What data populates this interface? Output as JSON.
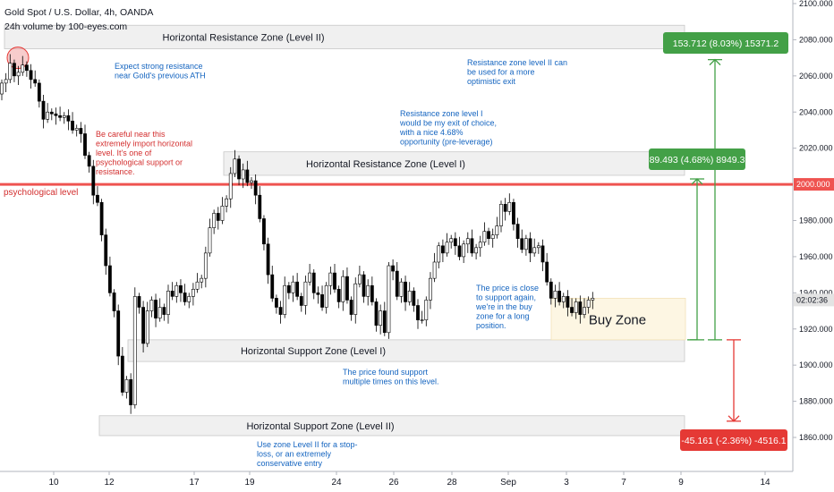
{
  "header": {
    "title": "Gold Spot / U.S. Dollar, 4h, OANDA",
    "subtitle": "24h volume by 100-eyes.com"
  },
  "chart_data": {
    "type": "candlestick",
    "ylim": [
      1850,
      2100
    ],
    "yticks": [
      {
        "value": 2100,
        "label": "2100.000"
      },
      {
        "value": 2080,
        "label": "2080.000"
      },
      {
        "value": 2060,
        "label": "2060.000"
      },
      {
        "value": 2040,
        "label": "2040.000"
      },
      {
        "value": 2020,
        "label": "2020.000"
      },
      {
        "value": 1980,
        "label": "1980.000"
      },
      {
        "value": 1960,
        "label": "1960.000"
      },
      {
        "value": 1940,
        "label": "1940.000"
      },
      {
        "value": 1920,
        "label": "1920.000"
      },
      {
        "value": 1900,
        "label": "1900.000"
      },
      {
        "value": 1880,
        "label": "1880.000"
      },
      {
        "value": 1860,
        "label": "1860.000"
      }
    ],
    "xticks": [
      "10",
      "12",
      "17",
      "19",
      "24",
      "26",
      "28",
      "Sep",
      "3",
      "7",
      "9",
      "14"
    ],
    "psych_level": {
      "value": 2000,
      "label": "2000.000",
      "text": "psychological level"
    },
    "current_price": {
      "value": 1937,
      "label": "02:02:36"
    },
    "candles_close": [
      2056,
      2058,
      2067,
      2060,
      2062,
      2066,
      2063,
      2058,
      2056,
      2046,
      2036,
      2040,
      2039,
      2038,
      2037,
      2038,
      2035,
      2030,
      2031,
      2028,
      2016,
      2010,
      1994,
      1990,
      1972,
      1955,
      1940,
      1930,
      1905,
      1885,
      1892,
      1878,
      1938,
      1932,
      1912,
      1930,
      1936,
      1926,
      1932,
      1928,
      1941,
      1938,
      1944,
      1940,
      1935,
      1938,
      1942,
      1946,
      1948,
      1962,
      1976,
      1984,
      1980,
      1988,
      1992,
      2006,
      2014,
      2003,
      2008,
      2001,
      2002,
      1994,
      1981,
      1967,
      1950,
      1937,
      1932,
      1928,
      1944,
      1940,
      1946,
      1938,
      1933,
      1946,
      1951,
      1940,
      1939,
      1932,
      1944,
      1951,
      1942,
      1935,
      1949,
      1936,
      1928,
      1945,
      1950,
      1938,
      1944,
      1935,
      1922,
      1930,
      1918,
      1955,
      1952,
      1938,
      1946,
      1935,
      1941,
      1933,
      1925,
      1925,
      1936,
      1948,
      1957,
      1966,
      1962,
      1968,
      1970,
      1966,
      1960,
      1967,
      1970,
      1962,
      1965,
      1968,
      1974,
      1970,
      1972,
      1977,
      1989,
      1985,
      1990,
      1978,
      1970,
      1964,
      1970,
      1962,
      1965,
      1966,
      1957,
      1946,
      1937,
      1941,
      1935,
      1938,
      1932,
      1929,
      1935,
      1928,
      1932,
      1936,
      1937
    ],
    "annotations": [
      {
        "text": "Horizontal Resistance Zone (Level II)",
        "low": 2075,
        "high": 2088
      },
      {
        "text": "Horizontal Resistance Zone (Level I)",
        "low": 2005,
        "high": 2018
      },
      {
        "text": "Horizontal Support Zone (Level I)",
        "low": 1902,
        "high": 1914
      },
      {
        "text": "Horizontal Support Zone (Level II)",
        "low": 1861,
        "high": 1872
      },
      {
        "text": "Buy Zone",
        "low": 1914,
        "high": 1937
      }
    ],
    "notes": [
      {
        "lines": [
          "Expect strong resistance",
          "near Gold's previous ATH"
        ],
        "color": "#1565c0"
      },
      {
        "lines": [
          "Resistance zone level II can",
          "be used for a more",
          "optimistic exit"
        ],
        "color": "#1565c0"
      },
      {
        "lines": [
          "Resistance zone level I",
          "would be my exit of choice,",
          "with a nice 4.68%",
          "opportunity (pre-leverage)"
        ],
        "color": "#1565c0"
      },
      {
        "lines": [
          "Be careful near this",
          "extremely import horizontal",
          "level. It's one of",
          "psychological support or",
          "resistance."
        ],
        "color": "#d32f2f"
      },
      {
        "lines": [
          "The price is close",
          "to support again,",
          "we're in the buy",
          "zone for a long",
          "position."
        ],
        "color": "#1565c0"
      },
      {
        "lines": [
          "The price found support",
          "multiple times on this level."
        ],
        "color": "#1565c0"
      },
      {
        "lines": [
          "Use zone Level II for a stop-",
          "loss, or an extremely",
          "conservative entry"
        ],
        "color": "#1565c0"
      }
    ],
    "measures": [
      {
        "label": "153.712 (8.03%) 15371.2",
        "from": 1914,
        "to": 2069,
        "color": "#43a047"
      },
      {
        "label": "89.493 (4.68%) 8949.3",
        "from": 1914,
        "to": 2003,
        "color": "#43a047"
      },
      {
        "label": "-45.161 (-2.36%) -4516.1",
        "from": 1914,
        "to": 1869,
        "color": "#e53935"
      }
    ]
  },
  "colors": {
    "candle_body": "#ffffff",
    "candle_dark": "#000000",
    "zone_fill": "#f0f0f0",
    "buy_zone_fill": "#fdf6e3",
    "psych_line": "#ef5350",
    "measure_green": "#43a047",
    "measure_red": "#e53935"
  }
}
